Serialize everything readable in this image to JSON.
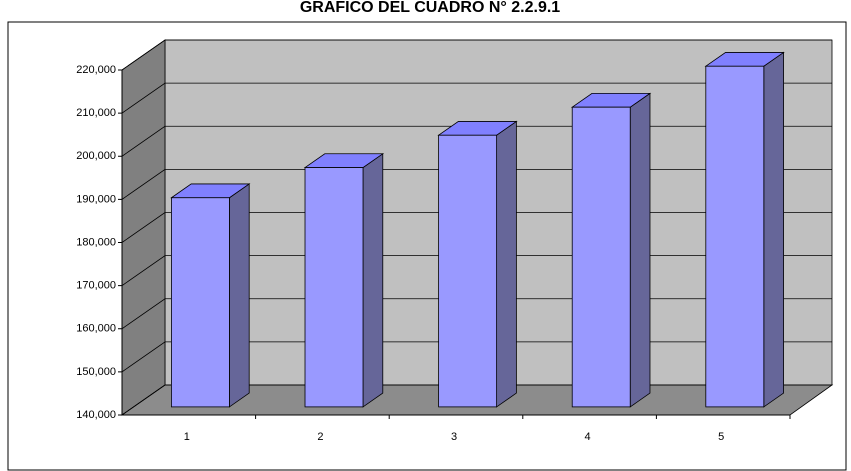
{
  "chart_data": {
    "type": "bar3d",
    "title": "GRAFICO DEL CUADRO N° 2.2.9.1",
    "categories": [
      "1",
      "2",
      "3",
      "4",
      "5"
    ],
    "values": [
      188500,
      195500,
      203000,
      209500,
      219000
    ],
    "color": "#9999ff",
    "ylim": [
      140000,
      220000
    ],
    "yticks": [
      {
        "value": 140000,
        "label": "140,000"
      },
      {
        "value": 150000,
        "label": "150,000"
      },
      {
        "value": 160000,
        "label": "160,000"
      },
      {
        "value": 170000,
        "label": "170,000"
      },
      {
        "value": 180000,
        "label": "180,000"
      },
      {
        "value": 190000,
        "label": "190,000"
      },
      {
        "value": 200000,
        "label": "200,000"
      },
      {
        "value": 210000,
        "label": "210,000"
      },
      {
        "value": 220000,
        "label": "220,000"
      }
    ],
    "grid": true
  }
}
